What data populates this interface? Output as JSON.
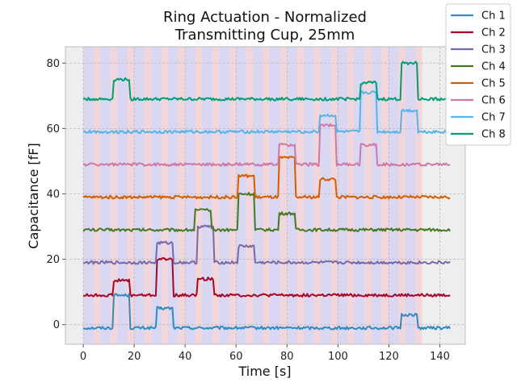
{
  "chart_data": {
    "type": "line",
    "title_lines": [
      "Ring Actuation - Normalized",
      "Transmitting Cup, 25mm"
    ],
    "xlabel": "Time [s]",
    "ylabel": "Capacitance [fF]",
    "xlim": [
      -7,
      150
    ],
    "ylim": [
      -6,
      85
    ],
    "xticks": [
      0,
      20,
      40,
      60,
      80,
      100,
      120,
      140
    ],
    "yticks": [
      0,
      20,
      40,
      60,
      80
    ],
    "grid": true,
    "legend_placement": "top-right",
    "colors": {
      "plot_background": "#eeeeee",
      "page_background": "#ffffff",
      "active_band": "#dad7f2",
      "inactive_band": "#f3d6da",
      "grid": "#bbbbbb"
    },
    "active_window": [
      0,
      133
    ],
    "band_period": 6.65,
    "band_active_fraction": 0.63,
    "series": [
      {
        "name": "Ch 1",
        "color": "#348abd",
        "base": -1,
        "pulses": [
          [
            12,
            18,
            10
          ],
          [
            29,
            35,
            6
          ],
          [
            125,
            131,
            4
          ]
        ]
      },
      {
        "name": "Ch 2",
        "color": "#a60628",
        "base": 9,
        "pulses": [
          [
            12,
            18,
            4.5
          ],
          [
            29,
            35,
            11
          ],
          [
            45,
            51,
            5
          ]
        ]
      },
      {
        "name": "Ch 3",
        "color": "#7a68a6",
        "base": 19,
        "pulses": [
          [
            29,
            35,
            6
          ],
          [
            45,
            51,
            11
          ],
          [
            61,
            67,
            5
          ]
        ]
      },
      {
        "name": "Ch 4",
        "color": "#467821",
        "base": 29,
        "pulses": [
          [
            44,
            50,
            6
          ],
          [
            61,
            67,
            11
          ],
          [
            77,
            83,
            5
          ]
        ]
      },
      {
        "name": "Ch 5",
        "color": "#d55e00",
        "base": 39,
        "pulses": [
          [
            61,
            67,
            6.5
          ],
          [
            77,
            83,
            12
          ],
          [
            93,
            99,
            5.5
          ]
        ]
      },
      {
        "name": "Ch 6",
        "color": "#cc79a7",
        "base": 49,
        "pulses": [
          [
            77,
            83,
            6
          ],
          [
            93,
            99,
            12
          ],
          [
            109,
            115,
            6
          ]
        ]
      },
      {
        "name": "Ch 7",
        "color": "#56b4e9",
        "base": 59,
        "pulses": [
          [
            93,
            99,
            5
          ],
          [
            109,
            115,
            12
          ],
          [
            125,
            131,
            6.5
          ]
        ]
      },
      {
        "name": "Ch 8",
        "color": "#009e73",
        "base": 69,
        "pulses": [
          [
            12,
            18,
            6
          ],
          [
            109,
            115,
            5
          ],
          [
            125,
            131,
            11
          ]
        ]
      }
    ]
  }
}
